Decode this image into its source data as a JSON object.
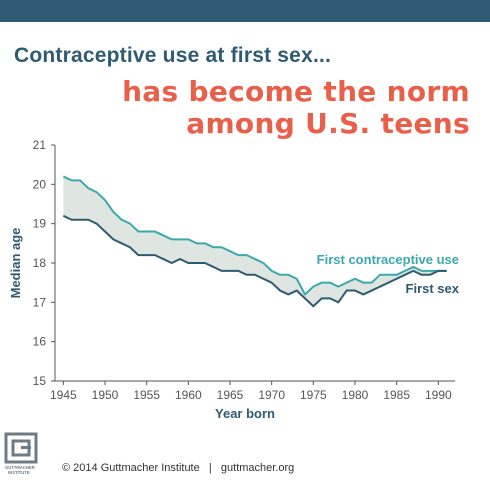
{
  "header": {
    "title": "Contraceptive use at first sex...",
    "subtitle_line1": "has become the norm",
    "subtitle_line2": "among U.S. teens"
  },
  "colors": {
    "brand_dark": "#2e5b73",
    "accent": "#e8604a",
    "contraceptive_line": "#3aa9ad",
    "first_sex_line": "#2e5b73",
    "gap_fill": "#dfe6e1"
  },
  "chart_data": {
    "type": "line",
    "xlabel": "Year born",
    "ylabel": "Median age",
    "xlim": [
      1944,
      1992
    ],
    "ylim": [
      15,
      21
    ],
    "x_ticks": [
      "1945",
      "1950",
      "1955",
      "1960",
      "1965",
      "1970",
      "1975",
      "1980",
      "1985",
      "1990"
    ],
    "y_ticks": [
      "15",
      "16",
      "17",
      "18",
      "19",
      "20",
      "21"
    ],
    "x": [
      1945,
      1946,
      1947,
      1948,
      1949,
      1950,
      1951,
      1952,
      1953,
      1954,
      1955,
      1956,
      1957,
      1958,
      1959,
      1960,
      1961,
      1962,
      1963,
      1964,
      1965,
      1966,
      1967,
      1968,
      1969,
      1970,
      1971,
      1972,
      1973,
      1974,
      1975,
      1976,
      1977,
      1978,
      1979,
      1980,
      1981,
      1982,
      1983,
      1984,
      1985,
      1986,
      1987,
      1988,
      1989,
      1990,
      1991
    ],
    "series": [
      {
        "name": "First contraceptive use",
        "values": [
          20.2,
          20.1,
          20.1,
          19.9,
          19.8,
          19.6,
          19.3,
          19.1,
          19.0,
          18.8,
          18.8,
          18.8,
          18.7,
          18.6,
          18.6,
          18.6,
          18.5,
          18.5,
          18.4,
          18.4,
          18.3,
          18.2,
          18.2,
          18.1,
          18.0,
          17.8,
          17.7,
          17.7,
          17.6,
          17.2,
          17.4,
          17.5,
          17.5,
          17.4,
          17.5,
          17.6,
          17.5,
          17.5,
          17.7,
          17.7,
          17.7,
          17.8,
          17.9,
          17.8,
          17.8,
          17.8,
          17.8
        ]
      },
      {
        "name": "First sex",
        "values": [
          19.2,
          19.1,
          19.1,
          19.1,
          19.0,
          18.8,
          18.6,
          18.5,
          18.4,
          18.2,
          18.2,
          18.2,
          18.1,
          18.0,
          18.1,
          18.0,
          18.0,
          18.0,
          17.9,
          17.8,
          17.8,
          17.8,
          17.7,
          17.7,
          17.6,
          17.5,
          17.3,
          17.2,
          17.3,
          17.1,
          16.9,
          17.1,
          17.1,
          17.0,
          17.3,
          17.3,
          17.2,
          17.3,
          17.4,
          17.5,
          17.6,
          17.7,
          17.8,
          17.7,
          17.7,
          17.8,
          17.8
        ]
      }
    ]
  },
  "footer": {
    "logo_text": "GUTTMACHER INSTITUTE",
    "credit": "© 2014 Guttmacher Institute   |   guttmacher.org"
  }
}
